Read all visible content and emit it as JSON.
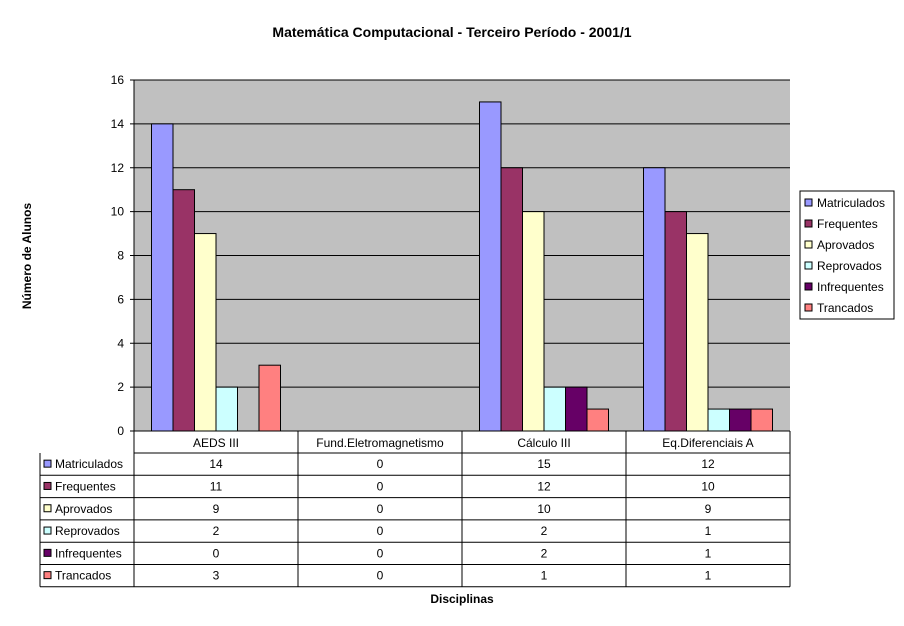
{
  "chart_data": {
    "type": "bar",
    "title": "Matemática Computacional - Terceiro Período - 2001/1",
    "xlabel": "Disciplinas",
    "ylabel": "Número de Alunos",
    "ylim": [
      0,
      16
    ],
    "yticks": [
      "0",
      "2",
      "4",
      "6",
      "8",
      "10",
      "12",
      "14",
      "16"
    ],
    "grid": true,
    "legend_position": "right",
    "categories": [
      "AEDS III",
      "Fund.Eletromagnetismo",
      "Cálculo III",
      "Eq.Diferenciais A"
    ],
    "series": [
      {
        "name": "Matriculados",
        "color": "#9999ff",
        "values": [
          14,
          0,
          15,
          12
        ]
      },
      {
        "name": "Frequentes",
        "color": "#993366",
        "values": [
          11,
          0,
          12,
          10
        ]
      },
      {
        "name": "Aprovados",
        "color": "#ffffcc",
        "values": [
          9,
          0,
          10,
          9
        ]
      },
      {
        "name": "Reprovados",
        "color": "#ccffff",
        "values": [
          2,
          0,
          2,
          1
        ]
      },
      {
        "name": "Infrequentes",
        "color": "#660066",
        "values": [
          0,
          0,
          2,
          1
        ]
      },
      {
        "name": "Trancados",
        "color": "#ff8080",
        "values": [
          3,
          0,
          1,
          1
        ]
      }
    ],
    "data_table": true,
    "plot_background": "#c0c0c0"
  }
}
